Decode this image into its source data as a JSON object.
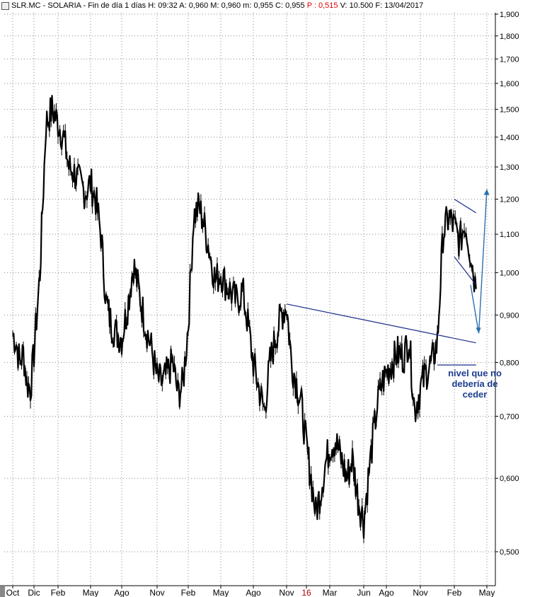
{
  "header": {
    "symbol": "SLR.MC - SOLARIA - Fin de día 1 días",
    "h": "H: 09:32",
    "a": "A: 0,960",
    "m_max": "M: 0,960",
    "m_min": "m: 0,955",
    "c": "C: 0,955",
    "p": "P : 0,515",
    "v": "V: 10.500",
    "f": "F: 13/04/2017"
  },
  "annotation": {
    "line1": "nivel que no",
    "line2": "debería de",
    "line3": "ceder"
  },
  "colors": {
    "price": "#000000",
    "grid": "#8a8a8a",
    "trendline": "#1a2a8a",
    "arrow": "#2a6fb0",
    "annotation": "#1d3d8f",
    "p_value": "#e00000"
  },
  "chart_data": {
    "type": "line",
    "title": "SLR.MC - SOLARIA - Fin de día 1 días",
    "y_scale": "log",
    "ylim": [
      0.475,
      1.93
    ],
    "grid": true,
    "y_ticks": [
      "1,900",
      "1,800",
      "1,700",
      "1,600",
      "1,500",
      "1,400",
      "1,300",
      "1,200",
      "1,100",
      "1,000",
      "0,900",
      "0,800",
      "0,700",
      "0,600",
      "0,500"
    ],
    "y_tick_values": [
      1.9,
      1.8,
      1.7,
      1.6,
      1.5,
      1.4,
      1.3,
      1.2,
      1.1,
      1.0,
      0.9,
      0.8,
      0.7,
      0.6,
      0.5
    ],
    "x_ticks": [
      "Oct",
      "Dic",
      "Feb",
      "May",
      "Ago",
      "Nov",
      "Feb",
      "May",
      "Ago",
      "Nov",
      "16",
      "Mar",
      "Jun",
      "Ago",
      "Nov",
      "Feb",
      "May"
    ],
    "x_tick_index": [
      0,
      6,
      10,
      16,
      22,
      28,
      34,
      40,
      46,
      52,
      56,
      61,
      67,
      72,
      78,
      84,
      90
    ],
    "x_tick_highlight": "16",
    "series": [
      {
        "name": "SLR.MC",
        "x": [
          0,
          1,
          2,
          3,
          4,
          5,
          6,
          7,
          8,
          9,
          10,
          11,
          12,
          13,
          14,
          15,
          16,
          17,
          18,
          19,
          20,
          21,
          22,
          23,
          24,
          25,
          26,
          27,
          28,
          29,
          30,
          31,
          32,
          33,
          34,
          35,
          36,
          37,
          38,
          39,
          40,
          41,
          42,
          43,
          44,
          45,
          46,
          47,
          48,
          49,
          50,
          51,
          52,
          53,
          54,
          55,
          56,
          57,
          58,
          59,
          60,
          61,
          62,
          63,
          64,
          65,
          66,
          67,
          68,
          69,
          70,
          71,
          72,
          73,
          74,
          75,
          76,
          77,
          78,
          79,
          80,
          81,
          82,
          83,
          84,
          85,
          86,
          87,
          88
        ],
        "values": [
          0.86,
          0.84,
          0.8,
          0.82,
          0.76,
          0.75,
          0.82,
          1.0,
          1.45,
          1.5,
          1.45,
          1.4,
          1.3,
          1.28,
          1.25,
          1.22,
          1.25,
          1.2,
          1.1,
          0.93,
          0.88,
          0.86,
          0.85,
          0.92,
          1.02,
          0.95,
          0.88,
          0.83,
          0.77,
          0.76,
          0.78,
          0.8,
          0.74,
          0.76,
          0.88,
          1.15,
          1.18,
          1.12,
          1.05,
          0.98,
          1.0,
          0.97,
          0.95,
          0.93,
          0.96,
          0.88,
          0.8,
          0.75,
          0.71,
          0.8,
          0.85,
          0.9,
          0.92,
          0.8,
          0.76,
          0.72,
          0.65,
          0.6,
          0.55,
          0.58,
          0.62,
          0.65,
          0.66,
          0.63,
          0.6,
          0.63,
          0.57,
          0.54,
          0.6,
          0.66,
          0.72,
          0.76,
          0.78,
          0.8,
          0.82,
          0.81,
          0.85,
          0.71,
          0.75,
          0.78,
          0.8,
          0.84,
          1.1,
          1.15,
          1.12,
          1.08,
          1.13,
          1.05,
          0.96
        ]
      }
    ],
    "trendlines": [
      {
        "x": [
          52,
          88
        ],
        "y": [
          0.925,
          0.84
        ]
      },
      {
        "x": [
          84,
          88
        ],
        "y": [
          1.2,
          1.16
        ]
      },
      {
        "x": [
          84,
          88
        ],
        "y": [
          1.04,
          0.97
        ]
      },
      {
        "x": [
          81,
          88
        ],
        "y": [
          0.795,
          0.795
        ]
      }
    ],
    "projection": {
      "x": [
        87,
        88.5,
        90
      ],
      "y": [
        0.97,
        0.86,
        1.23
      ]
    }
  }
}
